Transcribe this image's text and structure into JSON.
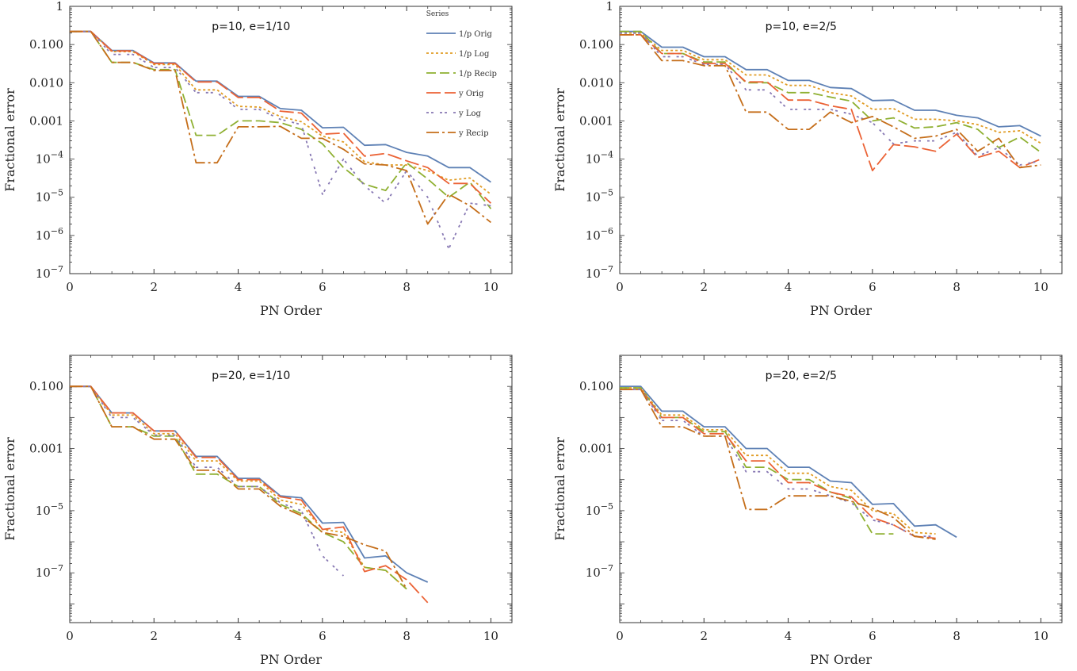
{
  "legend": {
    "title": "Series",
    "entries": [
      {
        "label": "1/p Orig",
        "color": "#5E81B5",
        "dash": ""
      },
      {
        "label": "1/p Log",
        "color": "#E19C24",
        "dash": "3,3"
      },
      {
        "label": "1/p Recip",
        "color": "#8FB032",
        "dash": "12,5"
      },
      {
        "label": "y Orig",
        "color": "#EB6235",
        "dash": "18,5"
      },
      {
        "label": "y Log",
        "color": "#8778B3",
        "dash": "3,3,3,8"
      },
      {
        "label": "y Recip",
        "color": "#C56E1A",
        "dash": "16,4,3,4"
      }
    ]
  },
  "chart_data": [
    {
      "type": "line",
      "title": "p=10, e=1/10",
      "xlabel": "PN Order",
      "ylabel": "Fractional error",
      "xlim": [
        0,
        10.5
      ],
      "ylim": [
        1e-07,
        1
      ],
      "yscale": "log",
      "xticks": [
        "0",
        "2",
        "4",
        "6",
        "8",
        "10"
      ],
      "yticks": [
        {
          "v": 1e-07,
          "b": "10",
          "e": "−7"
        },
        {
          "v": 1e-06,
          "b": "10",
          "e": "−6"
        },
        {
          "v": 1e-05,
          "b": "10",
          "e": "−5"
        },
        {
          "v": 0.0001,
          "b": "10",
          "e": "−4"
        },
        {
          "v": 0.001,
          "b": "0.001",
          "e": ""
        },
        {
          "v": 0.01,
          "b": "0.010",
          "e": ""
        },
        {
          "v": 0.1,
          "b": "0.100",
          "e": ""
        },
        {
          "v": 1,
          "b": "1",
          "e": ""
        }
      ],
      "x": [
        0,
        0.5,
        1,
        1.5,
        2,
        2.5,
        3,
        3.5,
        4,
        4.5,
        5,
        5.5,
        6,
        6.5,
        7,
        7.5,
        8,
        8.5,
        9,
        9.5,
        10
      ],
      "series": [
        {
          "name": "1/p Orig",
          "values": [
            0.22,
            0.22,
            0.07,
            0.07,
            0.033,
            0.033,
            0.011,
            0.011,
            0.0044,
            0.0044,
            0.0021,
            0.0019,
            0.00066,
            0.00068,
            0.00023,
            0.00024,
            0.00015,
            0.00012,
            6e-05,
            6e-05,
            2.5e-05
          ]
        },
        {
          "name": "1/p Log",
          "values": [
            0.22,
            0.22,
            0.065,
            0.065,
            0.03,
            0.03,
            0.0065,
            0.0065,
            0.0024,
            0.0023,
            0.0013,
            0.00095,
            0.0004,
            0.00028,
            8.5e-05,
            7e-05,
            7e-05,
            5e-05,
            2.8e-05,
            3.2e-05,
            1.2e-05
          ]
        },
        {
          "name": "1/p Recip",
          "values": [
            0.22,
            0.22,
            0.034,
            0.034,
            0.022,
            0.022,
            0.00042,
            0.00042,
            0.001,
            0.001,
            0.0009,
            0.0006,
            0.00025,
            6e-05,
            2.2e-05,
            1.5e-05,
            8e-05,
            3e-05,
            1e-05,
            2.5e-05,
            5e-06
          ]
        },
        {
          "name": "y Orig",
          "values": [
            0.22,
            0.22,
            0.068,
            0.068,
            0.032,
            0.032,
            0.0105,
            0.0105,
            0.0041,
            0.0041,
            0.0018,
            0.0016,
            0.00045,
            0.00048,
            0.00012,
            0.00014,
            9e-05,
            6e-05,
            2.3e-05,
            2.3e-05,
            7e-06
          ]
        },
        {
          "name": "y Log",
          "values": [
            0.22,
            0.22,
            0.055,
            0.055,
            0.025,
            0.025,
            0.0055,
            0.0055,
            0.002,
            0.002,
            0.0011,
            0.0008,
            1.2e-05,
            0.0001,
            2e-05,
            7e-06,
            5e-05,
            1e-05,
            4.5e-07,
            7e-06,
            6e-06
          ]
        },
        {
          "name": "y Recip",
          "values": [
            0.22,
            0.22,
            0.034,
            0.034,
            0.021,
            0.021,
            8e-05,
            8e-05,
            0.0007,
            0.0007,
            0.00072,
            0.00035,
            0.00035,
            0.00018,
            7.5e-05,
            7e-05,
            5e-05,
            2e-06,
            1.2e-05,
            6e-06,
            2.2e-06
          ]
        }
      ]
    },
    {
      "type": "line",
      "title": "p=10, e=2/5",
      "xlabel": "PN Order",
      "ylabel": "Fractional error",
      "xlim": [
        0,
        10.5
      ],
      "ylim": [
        1e-07,
        1
      ],
      "yscale": "log",
      "xticks": [
        "0",
        "2",
        "4",
        "6",
        "8",
        "10"
      ],
      "yticks": [
        {
          "v": 1e-07,
          "b": "10",
          "e": "−7"
        },
        {
          "v": 1e-06,
          "b": "10",
          "e": "−6"
        },
        {
          "v": 1e-05,
          "b": "10",
          "e": "−5"
        },
        {
          "v": 0.0001,
          "b": "10",
          "e": "−4"
        },
        {
          "v": 0.001,
          "b": "0.001",
          "e": ""
        },
        {
          "v": 0.01,
          "b": "0.010",
          "e": ""
        },
        {
          "v": 0.1,
          "b": "0.100",
          "e": ""
        },
        {
          "v": 1,
          "b": "1",
          "e": ""
        }
      ],
      "x": [
        0,
        0.5,
        1,
        1.5,
        2,
        2.5,
        3,
        3.5,
        4,
        4.5,
        5,
        5.5,
        6,
        6.5,
        7,
        7.5,
        8,
        8.5,
        9,
        9.5,
        10
      ],
      "series": [
        {
          "name": "1/p Orig",
          "values": [
            0.22,
            0.22,
            0.085,
            0.085,
            0.048,
            0.048,
            0.022,
            0.022,
            0.0115,
            0.0115,
            0.0075,
            0.007,
            0.0034,
            0.0035,
            0.0019,
            0.0019,
            0.0014,
            0.0012,
            0.0007,
            0.00075,
            0.0004
          ]
        },
        {
          "name": "1/p Log",
          "values": [
            0.2,
            0.2,
            0.07,
            0.07,
            0.04,
            0.04,
            0.016,
            0.016,
            0.0085,
            0.0085,
            0.0055,
            0.0045,
            0.002,
            0.0021,
            0.0011,
            0.0011,
            0.001,
            0.0008,
            0.0005,
            0.00055,
            0.00026
          ]
        },
        {
          "name": "1/p Recip",
          "values": [
            0.22,
            0.22,
            0.058,
            0.058,
            0.035,
            0.035,
            0.01,
            0.01,
            0.0055,
            0.0055,
            0.0042,
            0.0033,
            0.001,
            0.0012,
            0.00065,
            0.0007,
            0.0009,
            0.0006,
            0.0002,
            0.00038,
            0.00015
          ]
        },
        {
          "name": "y Orig",
          "values": [
            0.18,
            0.18,
            0.058,
            0.058,
            0.032,
            0.032,
            0.0105,
            0.0105,
            0.0035,
            0.0035,
            0.0025,
            0.002,
            5e-05,
            0.00024,
            0.00021,
            0.00016,
            0.00045,
            0.00011,
            0.00016,
            6e-05,
            0.0001
          ]
        },
        {
          "name": "y Log",
          "values": [
            0.2,
            0.2,
            0.048,
            0.048,
            0.03,
            0.03,
            0.0065,
            0.0065,
            0.002,
            0.002,
            0.002,
            0.0015,
            0.0009,
            0.00025,
            0.0003,
            0.0003,
            0.0005,
            0.00012,
            0.0002,
            7e-05,
            9e-05
          ]
        },
        {
          "name": "y Recip",
          "values": [
            0.18,
            0.18,
            0.038,
            0.038,
            0.028,
            0.028,
            0.0017,
            0.0017,
            0.0006,
            0.0006,
            0.0017,
            0.0009,
            0.0013,
            0.0007,
            0.00035,
            0.0004,
            0.0006,
            0.00016,
            0.00035,
            6e-05,
            7e-05
          ]
        }
      ]
    },
    {
      "type": "line",
      "title": "p=20, e=1/10",
      "xlabel": "PN Order",
      "ylabel": "Fractional error",
      "xlim": [
        0,
        10.5
      ],
      "ylim": [
        2.5e-09,
        1
      ],
      "yscale": "log",
      "xticks": [
        "0",
        "2",
        "4",
        "6",
        "8",
        "10"
      ],
      "yticks": [
        {
          "v": 1e-07,
          "b": "10",
          "e": "−7"
        },
        {
          "v": 1e-05,
          "b": "10",
          "e": "−5"
        },
        {
          "v": 0.001,
          "b": "0.001",
          "e": ""
        },
        {
          "v": 0.1,
          "b": "0.100",
          "e": ""
        }
      ],
      "x": [
        0,
        0.5,
        1,
        1.5,
        2,
        2.5,
        3,
        3.5,
        4,
        4.5,
        5,
        5.5,
        6,
        6.5,
        7,
        7.5,
        8,
        8.5
      ],
      "series": [
        {
          "name": "1/p Orig",
          "values": [
            0.1,
            0.1,
            0.014,
            0.014,
            0.0037,
            0.0037,
            0.00056,
            0.00056,
            0.00011,
            0.00011,
            3e-05,
            2.6e-05,
            4e-06,
            4.2e-06,
            3e-07,
            3.5e-07,
            1e-07,
            5e-08
          ]
        },
        {
          "name": "1/p Log",
          "values": [
            0.1,
            0.1,
            0.012,
            0.012,
            0.003,
            0.003,
            0.0004,
            0.0004,
            9e-05,
            9e-05,
            2.2e-05,
            1.6e-05,
            2.5e-06,
            2e-06,
            1.5e-07,
            1.2e-07,
            3e-08,
            null
          ]
        },
        {
          "name": "1/p Recip",
          "values": [
            0.1,
            0.1,
            0.005,
            0.005,
            0.0025,
            0.0025,
            0.00015,
            0.00015,
            6e-05,
            6e-05,
            1.6e-05,
            8e-06,
            2e-06,
            1e-06,
            1.5e-07,
            1.2e-07,
            3e-08,
            null
          ]
        },
        {
          "name": "y Orig",
          "values": [
            0.1,
            0.1,
            0.014,
            0.014,
            0.0037,
            0.0037,
            0.00052,
            0.00052,
            0.0001,
            0.0001,
            2.8e-05,
            2.2e-05,
            2.5e-06,
            3e-06,
            1.1e-07,
            1.7e-07,
            6e-08,
            1.1e-08
          ]
        },
        {
          "name": "y Log",
          "values": [
            0.1,
            0.1,
            0.01,
            0.01,
            0.0027,
            0.0027,
            0.00025,
            0.00025,
            6e-05,
            6e-05,
            1.8e-05,
            1e-05,
            3.5e-07,
            8e-08,
            null,
            null,
            null,
            null
          ]
        },
        {
          "name": "y Recip",
          "values": [
            0.1,
            0.1,
            0.005,
            0.005,
            0.002,
            0.002,
            0.0002,
            0.0002,
            5e-05,
            5e-05,
            1.4e-05,
            7e-06,
            2e-06,
            1.5e-06,
            8e-07,
            5e-07,
            3e-08,
            null
          ]
        }
      ]
    },
    {
      "type": "line",
      "title": "p=20, e=2/5",
      "xlabel": "PN Order",
      "ylabel": "Fractional error",
      "xlim": [
        0,
        10.5
      ],
      "ylim": [
        2.5e-09,
        1
      ],
      "yscale": "log",
      "xticks": [
        "0",
        "2",
        "4",
        "6",
        "8",
        "10"
      ],
      "yticks": [
        {
          "v": 1e-07,
          "b": "10",
          "e": "−7"
        },
        {
          "v": 1e-05,
          "b": "10",
          "e": "−5"
        },
        {
          "v": 0.001,
          "b": "0.001",
          "e": ""
        },
        {
          "v": 0.1,
          "b": "0.100",
          "e": ""
        }
      ],
      "x": [
        0,
        0.5,
        1,
        1.5,
        2,
        2.5,
        3,
        3.5,
        4,
        4.5,
        5,
        5.5,
        6,
        6.5,
        7,
        7.5,
        8
      ],
      "series": [
        {
          "name": "1/p Orig",
          "values": [
            0.1,
            0.1,
            0.016,
            0.016,
            0.005,
            0.005,
            0.001,
            0.001,
            0.00025,
            0.00025,
            9e-05,
            8e-05,
            1.6e-05,
            1.7e-05,
            3.2e-06,
            3.5e-06,
            1.4e-06
          ]
        },
        {
          "name": "1/p Log",
          "values": [
            0.09,
            0.09,
            0.012,
            0.012,
            0.004,
            0.004,
            0.0006,
            0.0006,
            0.00016,
            0.00016,
            6e-05,
            4.5e-05,
            1e-05,
            8e-06,
            2e-06,
            1.8e-06,
            null
          ]
        },
        {
          "name": "1/p Recip",
          "values": [
            0.09,
            0.09,
            0.01,
            0.01,
            0.0035,
            0.0035,
            0.00025,
            0.00025,
            0.0001,
            0.0001,
            4e-05,
            2.5e-05,
            1.8e-06,
            1.8e-06,
            null,
            null,
            null
          ]
        },
        {
          "name": "y Orig",
          "values": [
            0.08,
            0.08,
            0.01,
            0.01,
            0.003,
            0.003,
            0.0004,
            0.0004,
            8e-05,
            8e-05,
            4e-05,
            2.8e-05,
            6e-06,
            3.5e-06,
            1.5e-06,
            1.3e-06,
            null
          ]
        },
        {
          "name": "y Log",
          "values": [
            0.08,
            0.08,
            0.008,
            0.008,
            0.0025,
            0.0025,
            0.00018,
            0.00018,
            5e-05,
            5e-05,
            3e-05,
            1.8e-05,
            5e-06,
            3.5e-06,
            1.5e-06,
            1.5e-06,
            null
          ]
        },
        {
          "name": "y Recip",
          "values": [
            0.08,
            0.08,
            0.005,
            0.005,
            0.0025,
            0.0025,
            1.1e-05,
            1.1e-05,
            3e-05,
            3e-05,
            3e-05,
            2e-05,
            1.2e-05,
            6e-06,
            1.5e-06,
            1.2e-06,
            null
          ]
        }
      ]
    }
  ]
}
